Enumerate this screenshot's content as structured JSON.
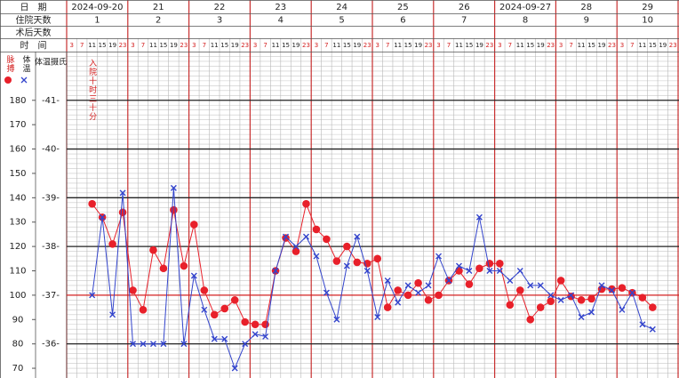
{
  "chart_data": {
    "type": "line",
    "row_labels": {
      "date": "日　期",
      "hospital_day": "住院天数",
      "post_op_day": "术后天数",
      "time": "时　间"
    },
    "axis_labels": {
      "pulse": "脉搏",
      "temp": "体温",
      "temp_unit": "体温摄氏"
    },
    "days": [
      {
        "date": "2024-09-20",
        "day": "1"
      },
      {
        "date": "21",
        "day": "2"
      },
      {
        "date": "22",
        "day": "3"
      },
      {
        "date": "23",
        "day": "4"
      },
      {
        "date": "24",
        "day": "5"
      },
      {
        "date": "25",
        "day": "6"
      },
      {
        "date": "26",
        "day": "7"
      },
      {
        "date": "2024-09-27",
        "day": "8"
      },
      {
        "date": "28",
        "day": "9"
      },
      {
        "date": "29",
        "day": "10"
      }
    ],
    "times": [
      "3",
      "7",
      "11",
      "15",
      "19",
      "23"
    ],
    "annotation": "入院十时三十分",
    "ylim": [
      66,
      200
    ],
    "yticks": [
      70,
      80,
      90,
      100,
      110,
      120,
      130,
      140,
      150,
      160,
      170,
      180
    ],
    "y2lim": [
      35.3,
      42
    ],
    "y2ticks": [
      {
        "value": 36,
        "label": "-36-"
      },
      {
        "value": 37,
        "label": "-37-"
      },
      {
        "value": 38,
        "label": "-38-"
      },
      {
        "value": 39,
        "label": "-39-"
      },
      {
        "value": 40,
        "label": "-40-"
      },
      {
        "value": 41,
        "label": "-41-"
      }
    ],
    "series": [
      {
        "name": "脉搏",
        "color": "#e8202a",
        "marker": "dot",
        "values": [
          null,
          null,
          137.5,
          132,
          121,
          134,
          102,
          94,
          118.5,
          111,
          135,
          112,
          129,
          102,
          92,
          94.5,
          98,
          89,
          88,
          88,
          110,
          123.5,
          118,
          137.5,
          127,
          123,
          114,
          120,
          113.5,
          113,
          115,
          95,
          102,
          100,
          105,
          98,
          100,
          106,
          110,
          104.5,
          111,
          113,
          113,
          96,
          102,
          90,
          95,
          97.5,
          106,
          99.5,
          98,
          98.5,
          102.5,
          102.5,
          103,
          101,
          99,
          95,
          null,
          null
        ]
      },
      {
        "name": "体温",
        "color": "#3344cc",
        "marker": "cross",
        "axis": "y2",
        "values": [
          null,
          null,
          37.0,
          38.6,
          36.6,
          39.1,
          36.0,
          36.0,
          36.0,
          36.0,
          39.2,
          36.0,
          37.4,
          36.7,
          36.1,
          36.1,
          35.5,
          36.0,
          36.2,
          36.15,
          37.5,
          38.2,
          38.0,
          38.2,
          37.8,
          37.05,
          36.5,
          37.6,
          38.2,
          37.5,
          36.55,
          37.3,
          36.85,
          37.2,
          37.05,
          37.2,
          37.8,
          37.3,
          37.6,
          37.5,
          38.6,
          37.5,
          37.5,
          37.3,
          37.5,
          37.2,
          37.2,
          37.0,
          36.9,
          37.0,
          36.55,
          36.65,
          37.2,
          37.1,
          36.7,
          37.05,
          36.4,
          36.3,
          null,
          null
        ]
      }
    ]
  }
}
